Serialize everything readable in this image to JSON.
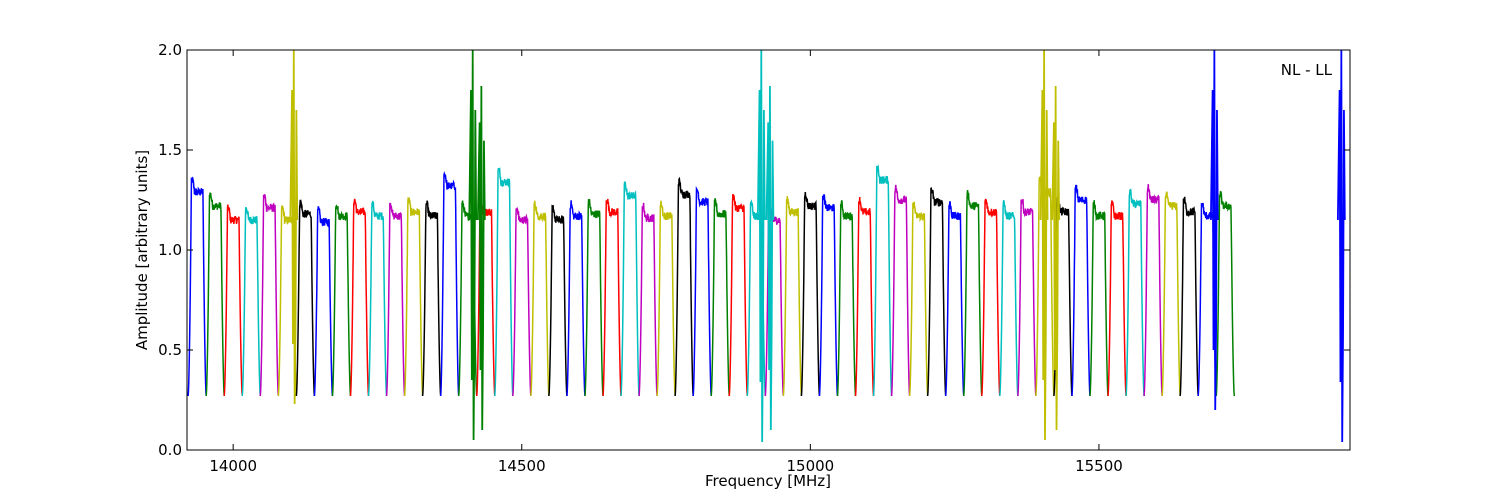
{
  "chart_data": {
    "type": "line",
    "title": "",
    "annotation": "NL - LL",
    "xlabel": "Frequency [MHz]",
    "ylabel": "Amplitude [arbitrary units]",
    "xlim": [
      13920,
      15935
    ],
    "ylim": [
      0.0,
      2.0
    ],
    "xticks": [
      14000,
      14500,
      15000,
      15500
    ],
    "yticks": [
      0.0,
      0.5,
      1.0,
      1.5,
      2.0
    ],
    "xtick_labels": [
      "14000",
      "14500",
      "15000",
      "15500"
    ],
    "ytick_labels": [
      "0.0",
      "0.5",
      "1.0",
      "1.5",
      "2.0"
    ],
    "grid": false,
    "legend": false,
    "palette": [
      "#0000ff",
      "#008000",
      "#ff0000",
      "#00bfbf",
      "#bf00bf",
      "#bfbf00",
      "#000000"
    ],
    "band_width_mhz": 31.25,
    "band_start_mhz": 13922,
    "band_peaks": [
      1.32,
      1.25,
      1.18,
      1.18,
      1.24,
      1.18,
      1.21,
      1.17,
      1.2,
      1.22,
      1.2,
      1.2,
      1.22,
      1.2,
      1.35,
      1.2,
      1.22,
      1.37,
      1.18,
      1.2,
      1.18,
      1.2,
      1.21,
      1.22,
      1.3,
      1.19,
      1.2,
      1.31,
      1.27,
      1.21,
      1.24,
      1.2,
      1.18,
      1.22,
      1.25,
      1.24,
      1.2,
      1.22,
      1.38,
      1.28,
      1.2,
      1.27,
      1.2,
      1.25,
      1.22,
      1.2,
      1.22,
      1.32,
      1.22,
      1.28,
      1.2,
      1.2,
      1.26,
      1.28,
      1.25,
      1.22,
      1.2,
      1.25
    ],
    "spikes": [
      {
        "x": 14105,
        "high": 2.0,
        "low": 0.23,
        "color": "#bfbf00"
      },
      {
        "x": 14415,
        "high": 2.0,
        "low": 0.05,
        "color": "#008000"
      },
      {
        "x": 14430,
        "high": 1.82,
        "low": 0.1,
        "color": "#008000"
      },
      {
        "x": 14915,
        "high": 2.0,
        "low": 0.04,
        "color": "#00bfbf"
      },
      {
        "x": 14930,
        "high": 1.82,
        "low": 0.1,
        "color": "#00bfbf"
      },
      {
        "x": 15405,
        "high": 2.0,
        "low": 0.05,
        "color": "#bfbf00"
      },
      {
        "x": 15425,
        "high": 1.82,
        "low": 0.1,
        "color": "#bfbf00"
      },
      {
        "x": 15700,
        "high": 2.0,
        "low": 0.2,
        "color": "#0000ff"
      },
      {
        "x": 15920,
        "high": 2.0,
        "low": 0.04,
        "color": "#0000ff"
      }
    ]
  }
}
